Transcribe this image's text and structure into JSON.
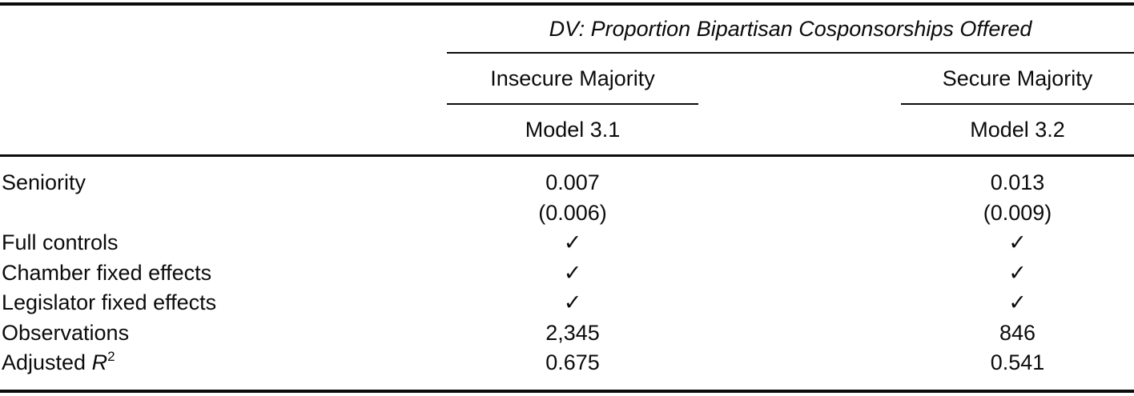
{
  "colors": {
    "text": "#0b0b0b",
    "background": "#ffffff",
    "rule": "#0b0b0b"
  },
  "table": {
    "dv_header": "DV: Proportion Bipartisan Cosponsorships Offered",
    "column_groups": [
      "Insecure Majority",
      "Secure Majority"
    ],
    "model_headers": [
      "Model 3.1",
      "Model 3.2"
    ],
    "rows": [
      {
        "label": "Seniority",
        "model_3_1": "0.007",
        "model_3_2": "0.013"
      },
      {
        "label": "",
        "model_3_1": "(0.006)",
        "model_3_2": "(0.009)"
      },
      {
        "label": "Full controls",
        "model_3_1": "✓",
        "model_3_2": "✓"
      },
      {
        "label": "Chamber fixed effects",
        "model_3_1": "✓",
        "model_3_2": "✓"
      },
      {
        "label": "Legislator fixed effects",
        "model_3_1": "✓",
        "model_3_2": "✓"
      },
      {
        "label": "Observations",
        "model_3_1": "2,345",
        "model_3_2": "846"
      },
      {
        "label_prefix": "Adjusted ",
        "label_symbol": "R",
        "label_superscript": "2",
        "model_3_1": "0.675",
        "model_3_2": "0.541"
      }
    ]
  }
}
